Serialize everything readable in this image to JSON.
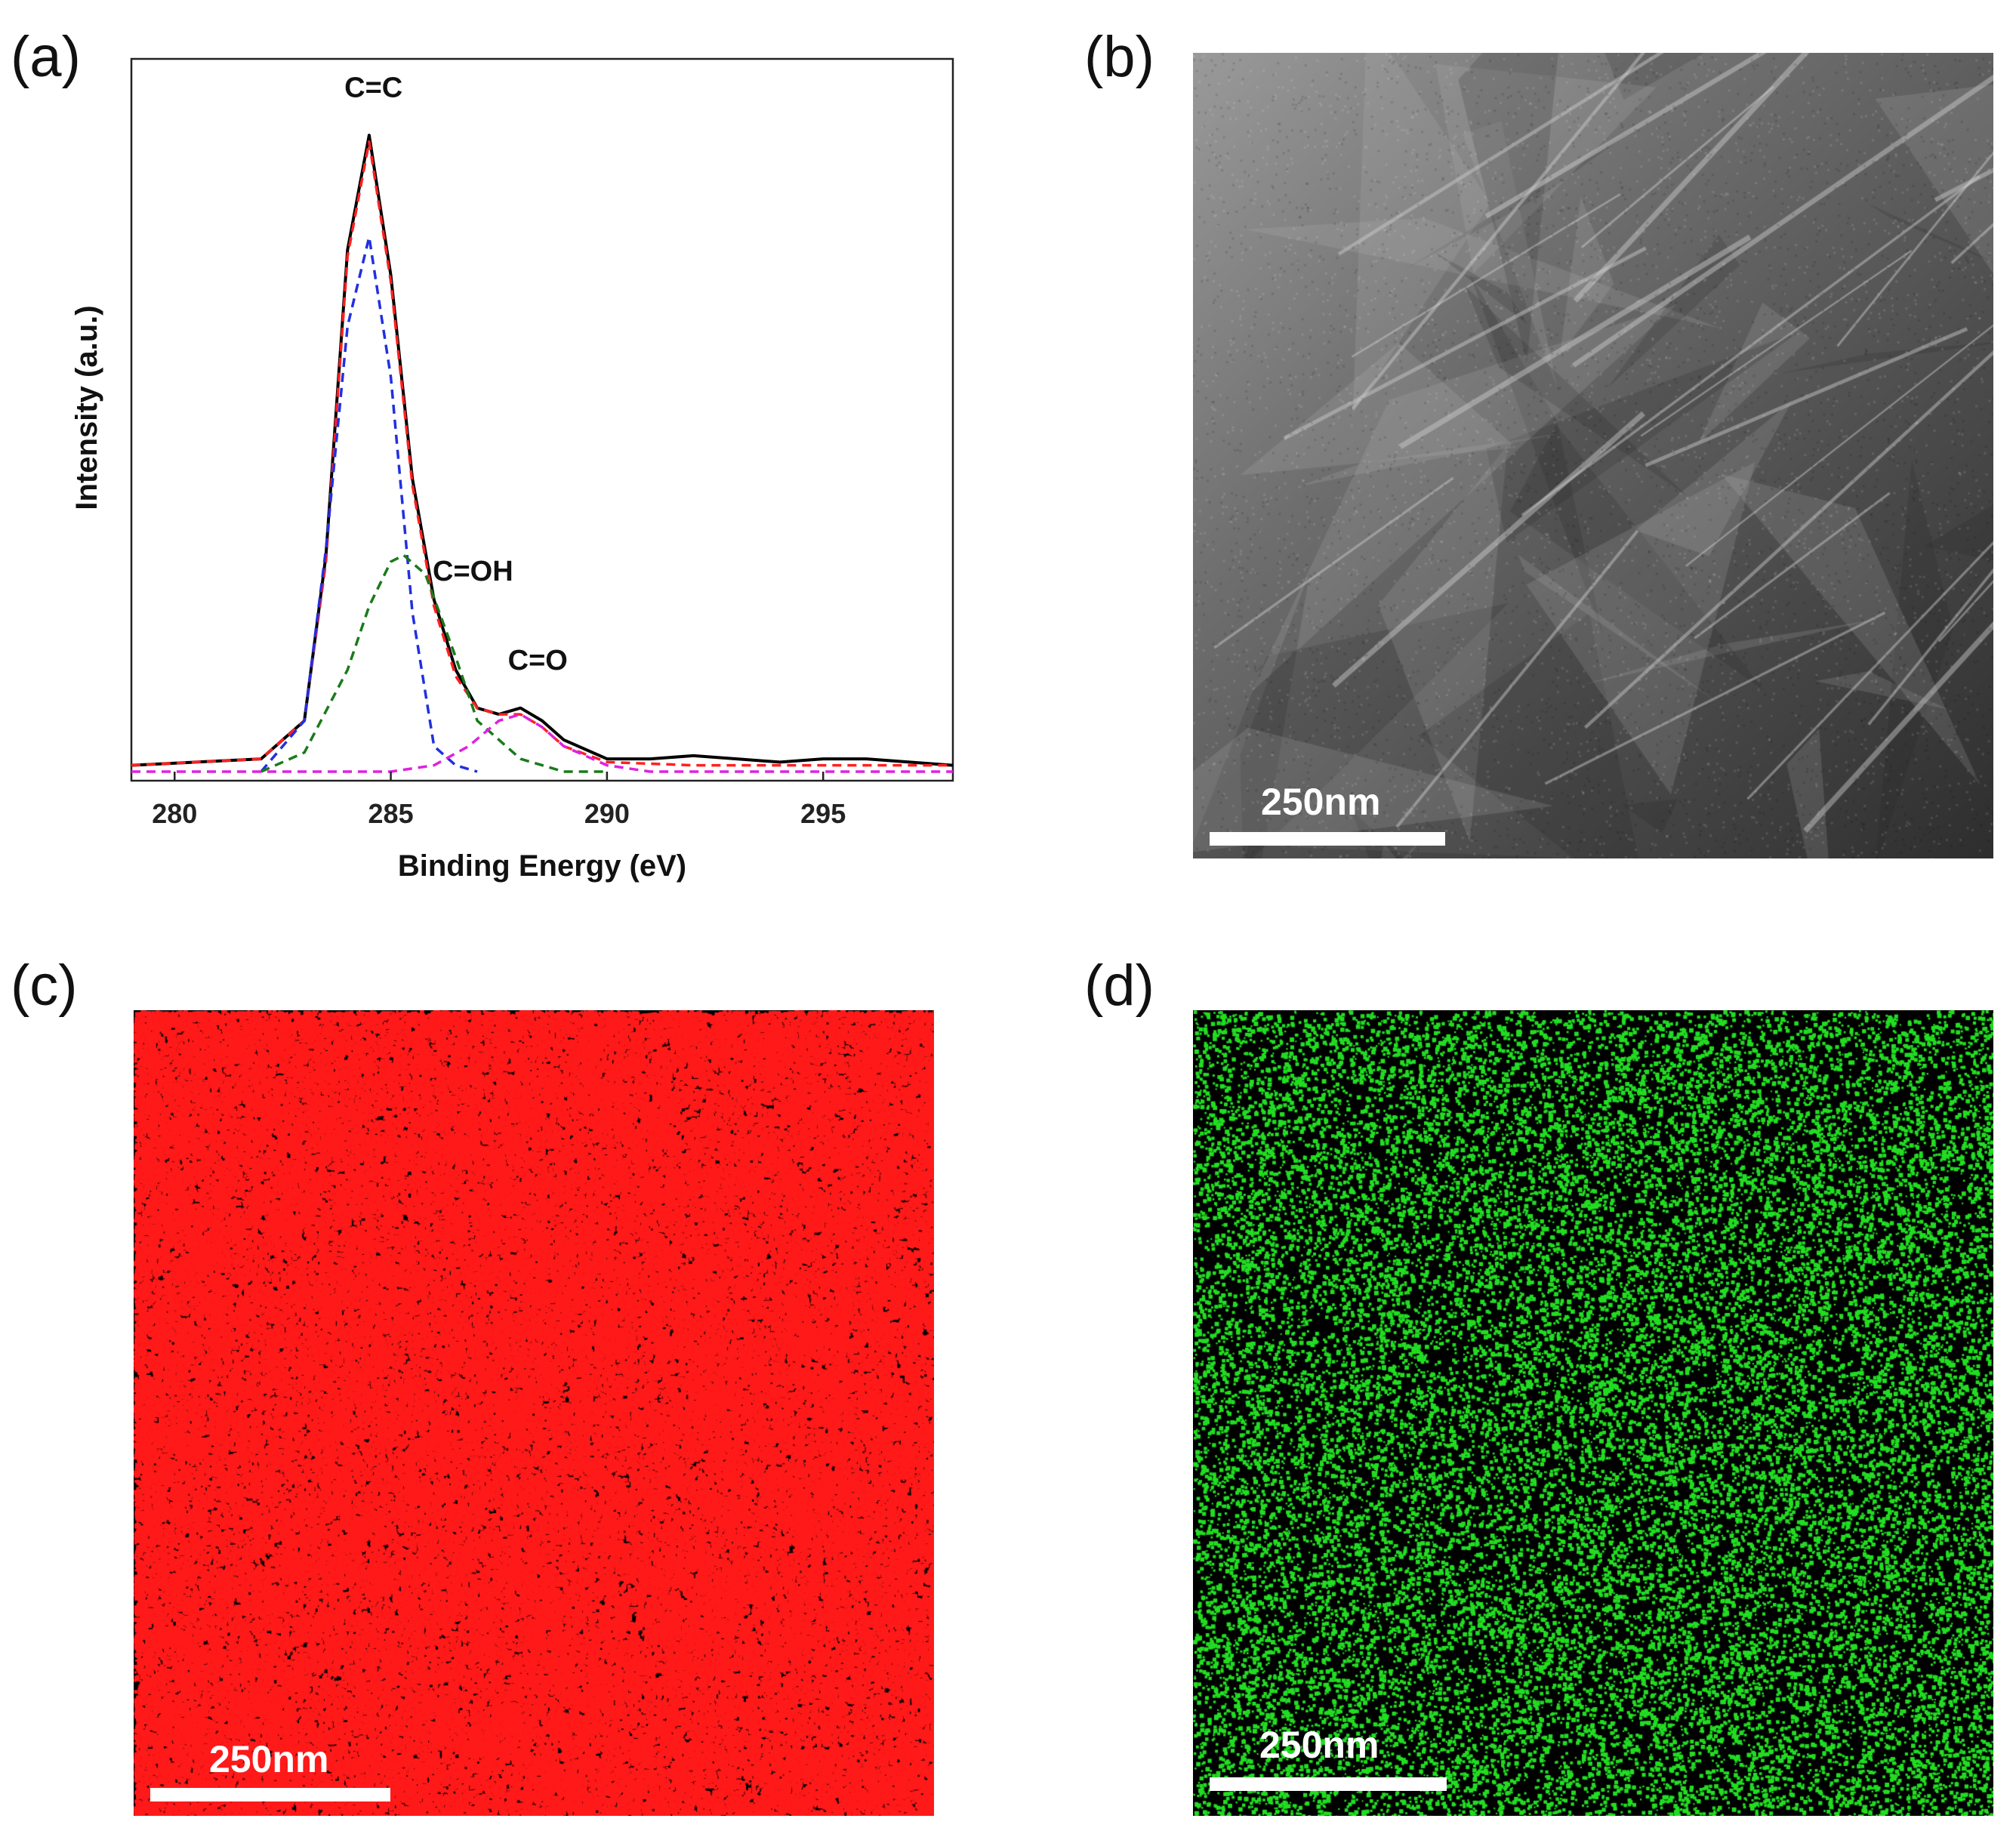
{
  "panels": {
    "a": {
      "label": "(a)"
    },
    "b": {
      "label": "(b)",
      "scale_label": "250nm"
    },
    "c": {
      "label": "(c)",
      "scale_label": "250nm",
      "map_color": "#ff1a1a"
    },
    "d": {
      "label": "(d)",
      "scale_label": "250nm",
      "map_color": "#22dd22"
    }
  },
  "chart_data": {
    "type": "line",
    "title": "",
    "xlabel": "Binding Energy (eV)",
    "ylabel": "Intensity (a.u.)",
    "xlim": [
      279,
      298
    ],
    "ylim": [
      0,
      1.12
    ],
    "xticks": [
      280,
      285,
      290,
      295
    ],
    "yticks_shown": false,
    "grid": false,
    "legend": "none",
    "annotations": [
      {
        "text": "C=C",
        "x": 284.6,
        "y": 1.06
      },
      {
        "text": "C=OH",
        "x": 286.9,
        "y": 0.3
      },
      {
        "text": "C=O",
        "x": 288.4,
        "y": 0.16
      }
    ],
    "series": [
      {
        "color": "#000000",
        "style": "solid",
        "x": [
          279.0,
          282.0,
          283.0,
          283.5,
          284.0,
          284.5,
          285.0,
          285.5,
          286.0,
          286.5,
          287.0,
          287.5,
          288.0,
          288.5,
          289.0,
          290.0,
          291.0,
          292.0,
          293.0,
          294.0,
          295.0,
          296.0,
          297.0,
          298.0
        ],
        "y": [
          0.01,
          0.02,
          0.08,
          0.34,
          0.82,
          1.0,
          0.78,
          0.46,
          0.27,
          0.16,
          0.1,
          0.09,
          0.1,
          0.08,
          0.05,
          0.02,
          0.02,
          0.025,
          0.02,
          0.015,
          0.02,
          0.02,
          0.015,
          0.01
        ]
      },
      {
        "color": "#ff2020",
        "style": "dashed",
        "x": [
          279.0,
          282.0,
          283.0,
          283.5,
          284.0,
          284.5,
          285.0,
          285.5,
          286.0,
          286.5,
          287.0,
          287.5,
          288.0,
          288.5,
          289.0,
          290.0,
          292.0,
          295.0,
          298.0
        ],
        "y": [
          0.01,
          0.02,
          0.08,
          0.33,
          0.81,
          0.99,
          0.77,
          0.45,
          0.26,
          0.15,
          0.1,
          0.09,
          0.09,
          0.07,
          0.04,
          0.015,
          0.01,
          0.01,
          0.01
        ]
      },
      {
        "color": "#2030e0",
        "style": "dashed",
        "x": [
          282.0,
          283.0,
          283.5,
          284.0,
          284.5,
          285.0,
          285.5,
          286.0,
          286.5,
          287.0
        ],
        "y": [
          0.0,
          0.08,
          0.35,
          0.7,
          0.84,
          0.62,
          0.25,
          0.04,
          0.01,
          0.0
        ]
      },
      {
        "color": "#1a7a1a",
        "style": "dashed",
        "x": [
          282.0,
          283.0,
          284.0,
          284.5,
          285.0,
          285.3,
          285.8,
          286.5,
          287.0,
          288.0,
          289.0,
          290.0
        ],
        "y": [
          0.0,
          0.03,
          0.16,
          0.26,
          0.33,
          0.34,
          0.31,
          0.18,
          0.08,
          0.02,
          0.0,
          0.0
        ]
      },
      {
        "color": "#e020e0",
        "style": "dashed",
        "x": [
          279.0,
          285.0,
          286.0,
          286.8,
          287.5,
          288.0,
          288.5,
          289.0,
          290.0,
          291.0,
          298.0
        ],
        "y": [
          0.0,
          0.0,
          0.01,
          0.04,
          0.08,
          0.09,
          0.07,
          0.04,
          0.01,
          0.0,
          0.0
        ]
      }
    ]
  }
}
